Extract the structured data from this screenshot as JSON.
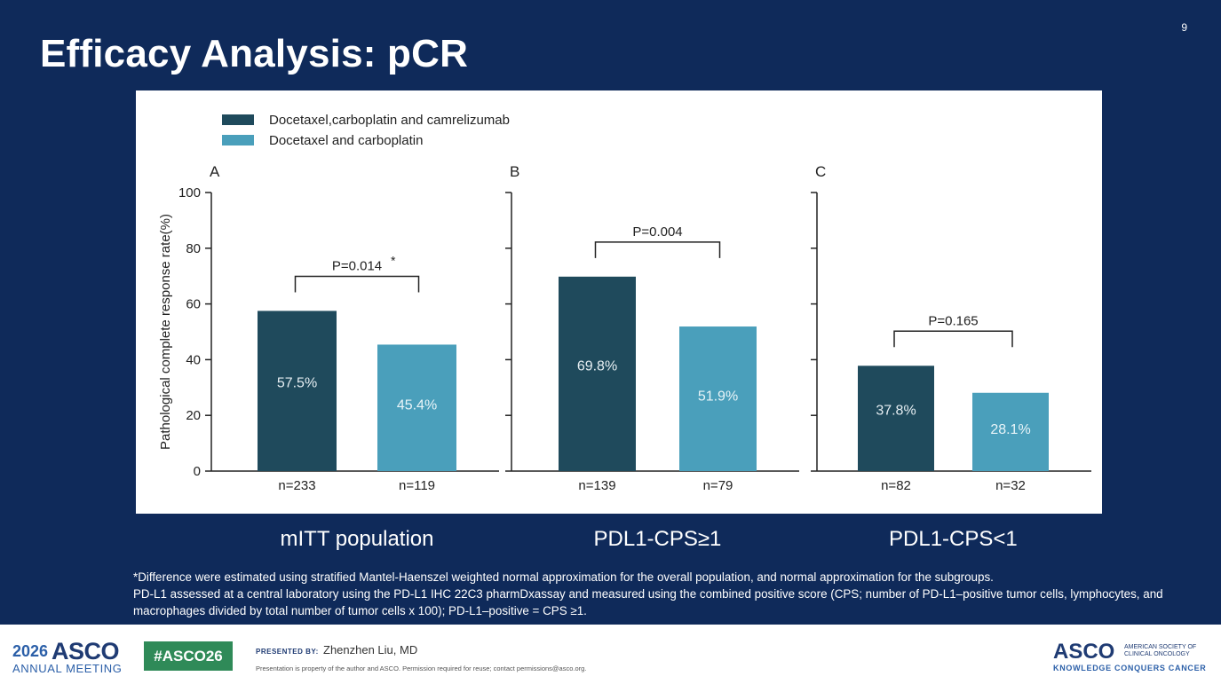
{
  "slide": {
    "number": "9",
    "title": "Efficacy Analysis: pCR"
  },
  "chart_data": {
    "type": "bar",
    "ylabel": "Pathological complete response rate(%)",
    "ylim": [
      0,
      100
    ],
    "yticks": [
      0,
      20,
      40,
      60,
      80,
      100
    ],
    "legend": {
      "placement": "top-left",
      "entries": [
        {
          "label": "Docetaxel,carboplatin and camrelizumab",
          "color": "#1f4a5c"
        },
        {
          "label": "Docetaxel and carboplatin",
          "color": "#4a9fbb"
        }
      ]
    },
    "panels": [
      {
        "letter": "A",
        "population": "mITT population",
        "p_value": "P=0.014",
        "p_marker": "*",
        "bars": [
          {
            "value": 57.5,
            "label": "57.5%",
            "n": "n=233"
          },
          {
            "value": 45.4,
            "label": "45.4%",
            "n": "n=119"
          }
        ]
      },
      {
        "letter": "B",
        "population": "PDL1-CPS≥1",
        "p_value": "P=0.004",
        "p_marker": "",
        "bars": [
          {
            "value": 69.8,
            "label": "69.8%",
            "n": "n=139"
          },
          {
            "value": 51.9,
            "label": "51.9%",
            "n": "n=79"
          }
        ]
      },
      {
        "letter": "C",
        "population": "PDL1-CPS<1",
        "p_value": "P=0.165",
        "p_marker": "",
        "bars": [
          {
            "value": 37.8,
            "label": "37.8%",
            "n": "n=82"
          },
          {
            "value": 28.1,
            "label": "28.1%",
            "n": "n=32"
          }
        ]
      }
    ]
  },
  "footnotes": {
    "line1": "*Difference  were estimated using stratified Mantel-Haenszel weighted normal approximation for the overall population, and normal approximation for the subgroups.",
    "line2": "PD-L1 assessed at a central laboratory using the PD-L1 IHC 22C3 pharmDxassay and measured using the combined positive score (CPS; number of PD-L1–positive tumor cells, lymphocytes, and macrophages divided by total number of tumor cells x 100); PD-L1–positive = CPS ≥1."
  },
  "footer": {
    "year": "2026",
    "asco": "ASCO",
    "meeting": "ANNUAL MEETING",
    "hashtag": "#ASCO26",
    "presented_by": "PRESENTED BY:",
    "presenter": "Zhenzhen Liu, MD",
    "permission_note": "Presentation is property of the author and ASCO. Permission required for reuse; contact permissions@asco.org.",
    "asco_logo": "ASCO",
    "society": "AMERICAN SOCIETY OF CLINICAL ONCOLOGY",
    "tagline": "KNOWLEDGE CONQUERS CANCER"
  }
}
